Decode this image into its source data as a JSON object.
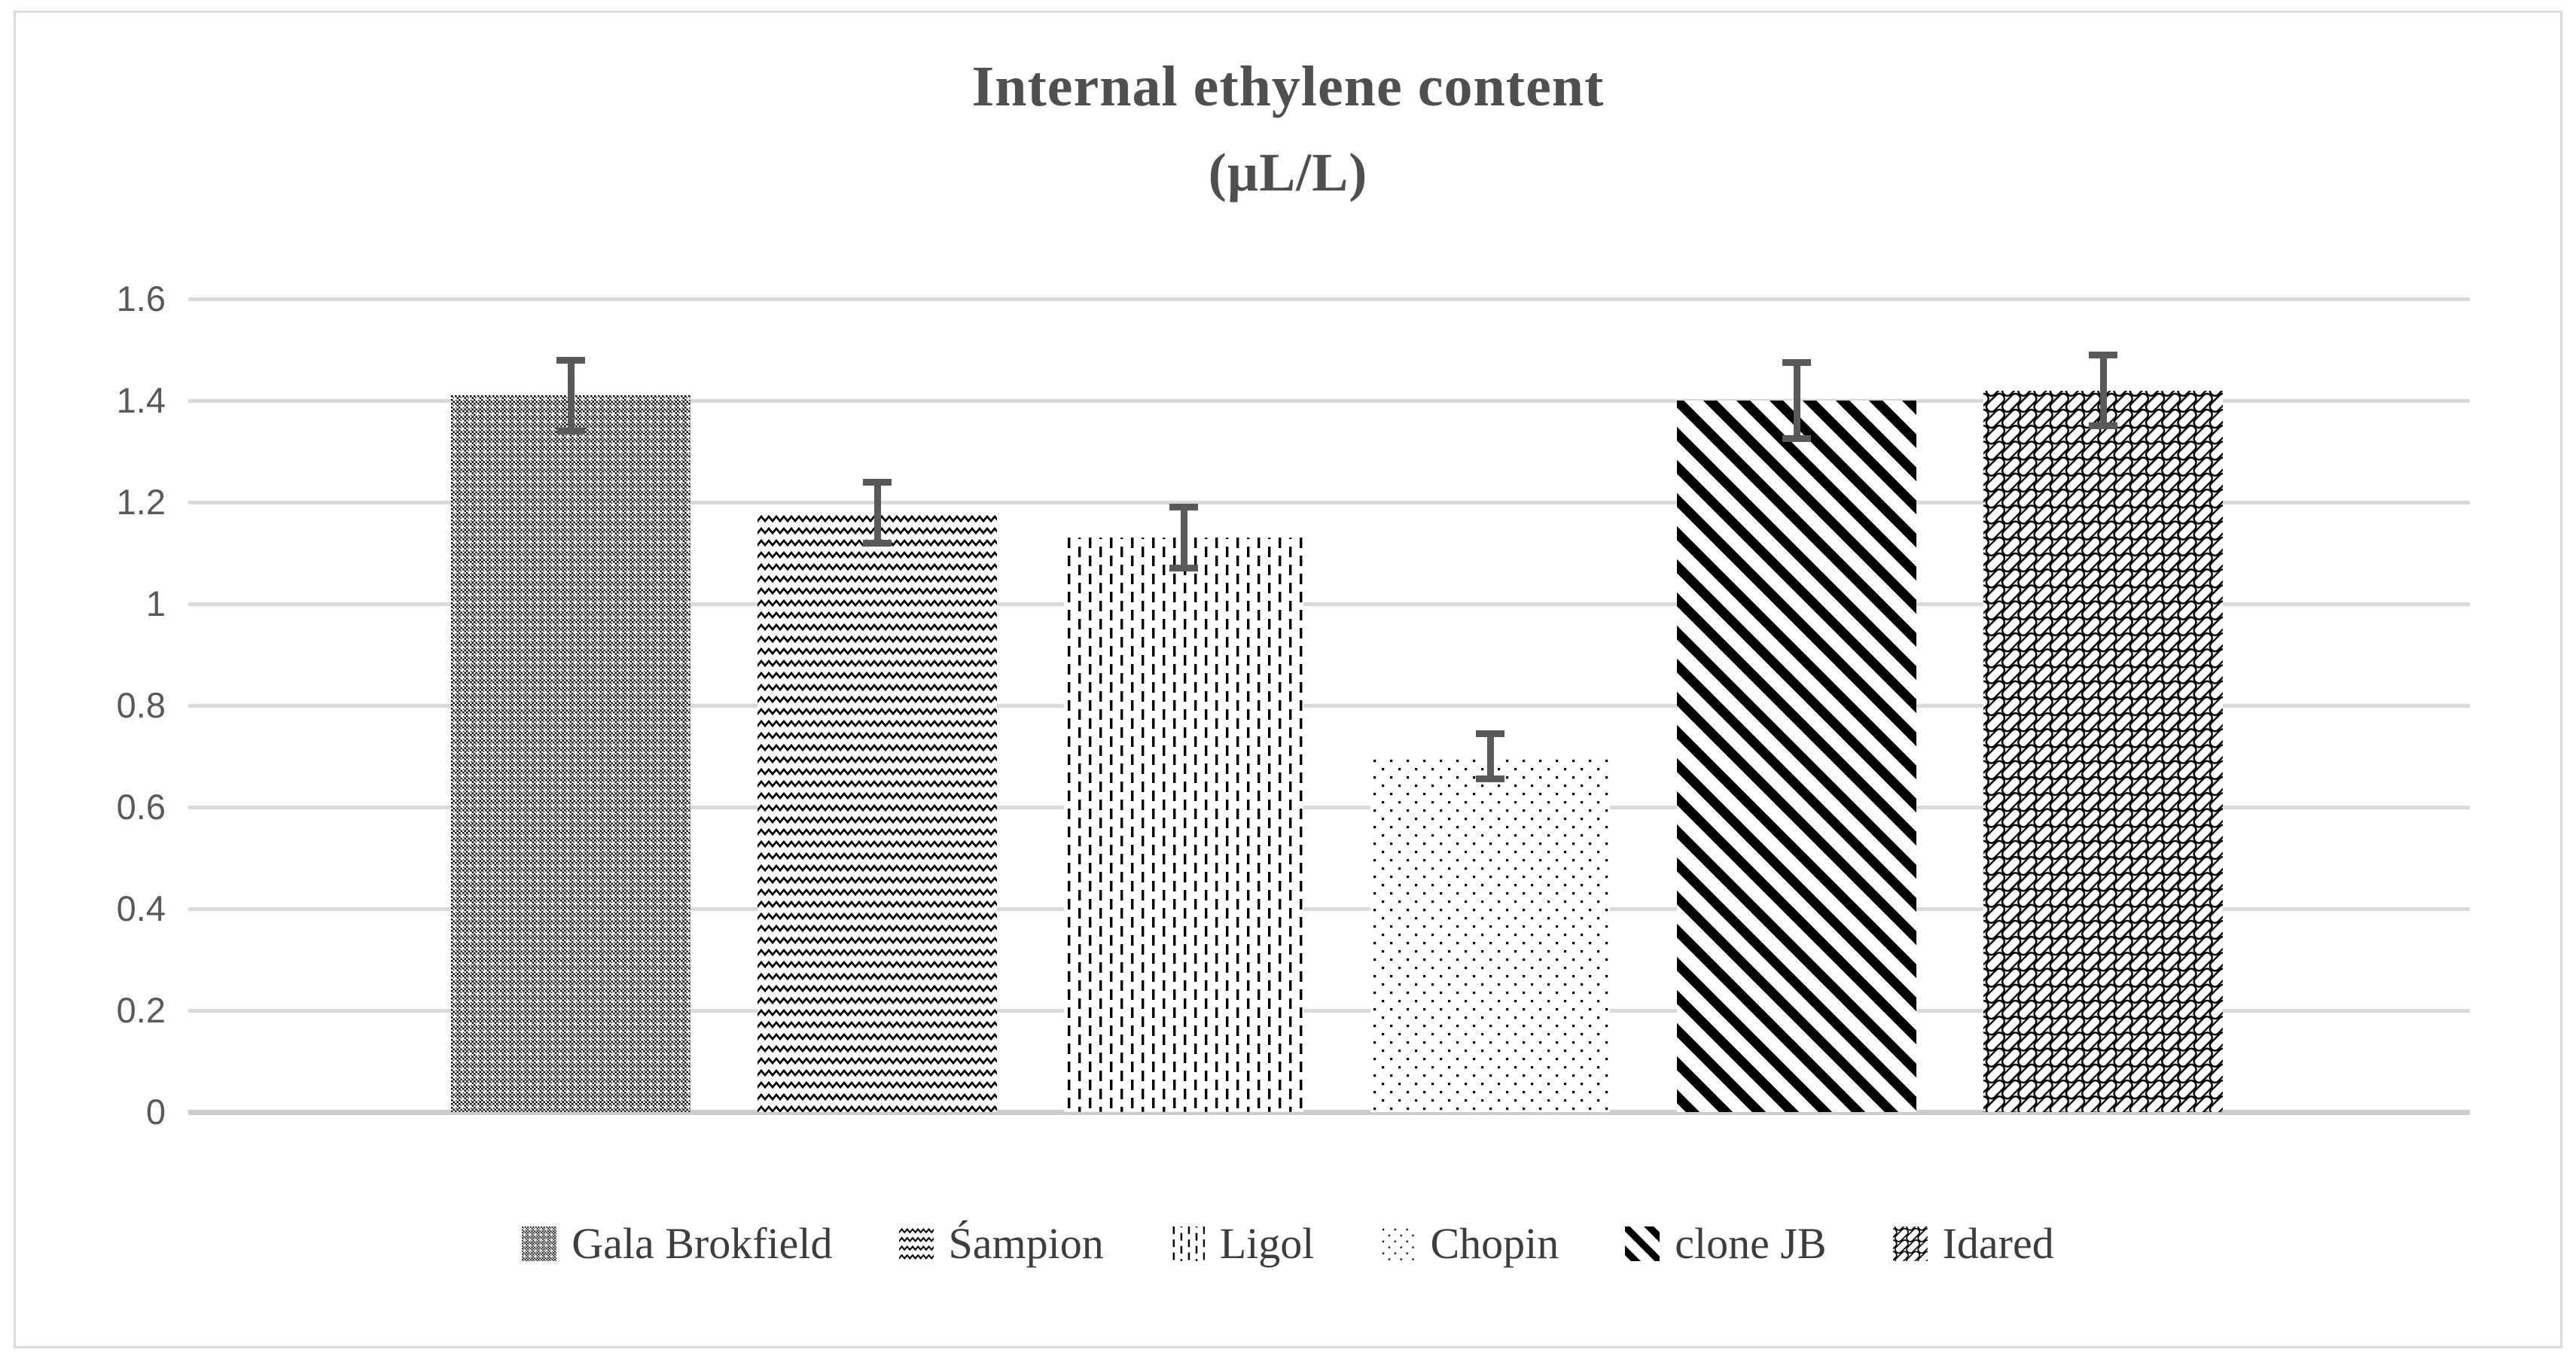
{
  "figure": {
    "kind": "excel-style bar chart with error bars",
    "background": "#ffffff",
    "border_color": "#dcdcdc"
  },
  "chart_data": {
    "type": "bar",
    "title": "Internal ethylene content",
    "title_units": "(µL/L)",
    "categories": [
      "Gala Brokfield",
      "Śampion",
      "Ligol",
      "Chopin",
      "clone JB",
      "Idared"
    ],
    "slugs": [
      "gala-brokfield",
      "sampion",
      "ligol",
      "chopin",
      "clone-jb",
      "idared"
    ],
    "values": [
      1.41,
      1.18,
      1.13,
      0.7,
      1.4,
      1.42
    ],
    "errors": [
      0.07,
      0.06,
      0.06,
      0.045,
      0.075,
      0.07
    ],
    "ylim": [
      0,
      1.6
    ],
    "ytick_labels": [
      "1.6",
      "1.4",
      "1.2",
      "1",
      "0.8",
      "0.6",
      "0.4",
      "0.2",
      "0"
    ],
    "grid": true,
    "legend_position": "bottom",
    "patterns": [
      "checker-dot",
      "wave",
      "dashed-vertical",
      "dot-sparse",
      "diagonal-thick",
      "shingle"
    ],
    "xlabel": "",
    "ylabel": ""
  },
  "colors": {
    "pattern_ink": "#000000",
    "error_bar": "#595959",
    "gridline": "#dadada",
    "axis_line": "#cccccc",
    "tick_text": "#595959",
    "title_text": "#4f4f4f",
    "legend_text": "#3d3d3d"
  }
}
